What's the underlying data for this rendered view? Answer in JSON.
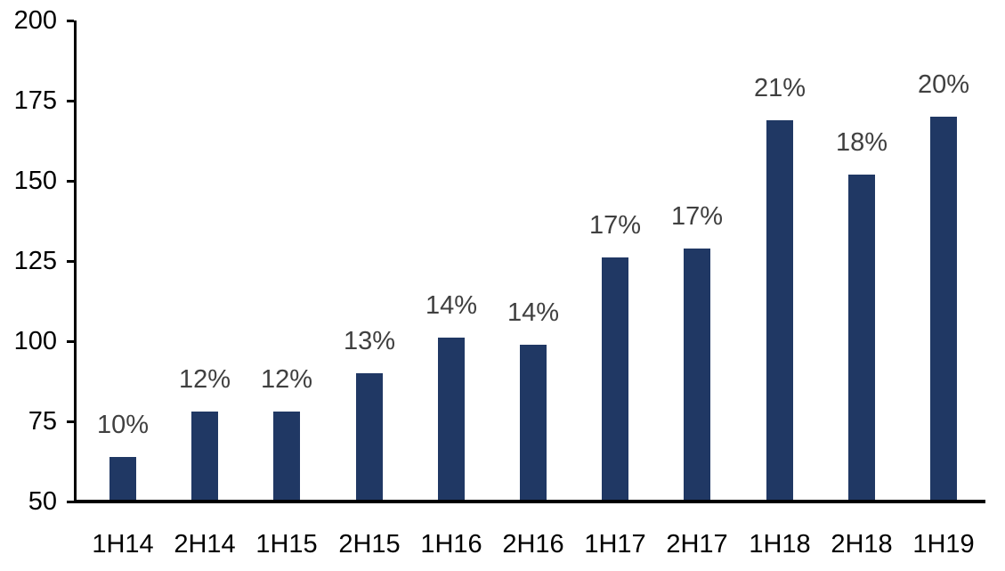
{
  "chart_data": {
    "type": "bar",
    "title": "",
    "xlabel": "",
    "ylabel": "",
    "categories": [
      "1H14",
      "2H14",
      "1H15",
      "2H15",
      "1H16",
      "2H16",
      "1H17",
      "2H17",
      "1H18",
      "2H18",
      "1H19"
    ],
    "values": [
      64,
      78,
      78,
      90,
      101,
      99,
      126,
      129,
      169,
      152,
      170
    ],
    "bar_labels": [
      "10%",
      "12%",
      "12%",
      "13%",
      "14%",
      "14%",
      "17%",
      "17%",
      "21%",
      "18%",
      "20%"
    ],
    "ylim": [
      50,
      200
    ],
    "ytick_interval": 25,
    "ytick_labels": [
      "50",
      "75",
      "100",
      "125",
      "150",
      "175",
      "200"
    ],
    "grid": false,
    "legend": "none",
    "colors": {
      "bar": "#203864",
      "bar_label_text": "#404040",
      "axis_text": "#000000",
      "axis_line": "#000000",
      "background": "#ffffff"
    }
  }
}
